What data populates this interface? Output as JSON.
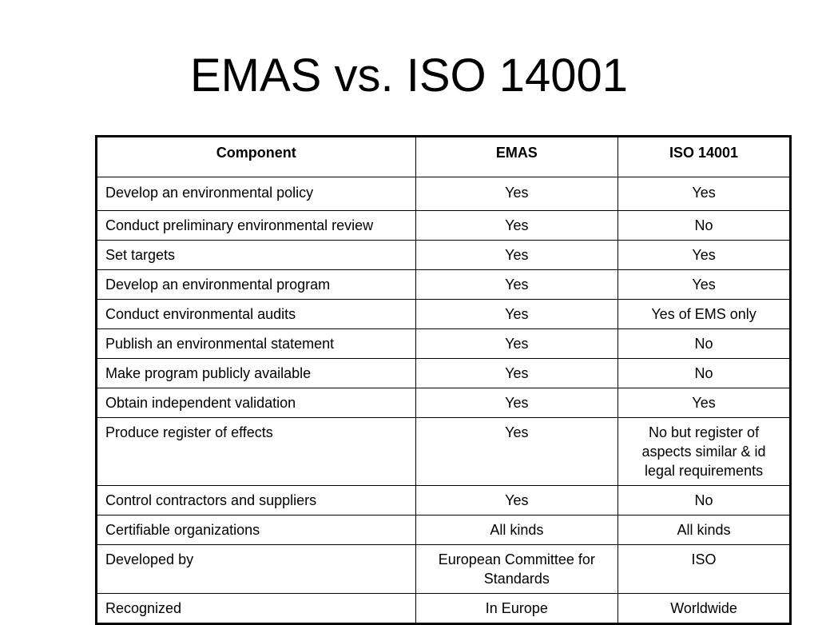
{
  "slide": {
    "title": "EMAS vs. ISO 14001"
  },
  "table": {
    "headers": [
      "Component",
      "EMAS",
      "ISO 14001"
    ],
    "rows": [
      [
        "Develop an environmental policy",
        "Yes",
        "Yes"
      ],
      [
        "Conduct preliminary environmental review",
        "Yes",
        "No"
      ],
      [
        "Set targets",
        "Yes",
        "Yes"
      ],
      [
        "Develop an environmental program",
        "Yes",
        "Yes"
      ],
      [
        "Conduct environmental audits",
        "Yes",
        "Yes of EMS only"
      ],
      [
        "Publish an environmental statement",
        "Yes",
        "No"
      ],
      [
        "Make program publicly available",
        "Yes",
        "No"
      ],
      [
        "Obtain independent validation",
        "Yes",
        "Yes"
      ],
      [
        "Produce register of effects",
        "Yes",
        "No but  register of aspects similar & id legal requirements"
      ],
      [
        "Control contractors and suppliers",
        "Yes",
        "No"
      ],
      [
        "Certifiable organizations",
        "All kinds",
        "All kinds"
      ],
      [
        "Developed by",
        "European Committee for Standards",
        "ISO"
      ],
      [
        "Recognized",
        "In Europe",
        "Worldwide"
      ]
    ]
  }
}
